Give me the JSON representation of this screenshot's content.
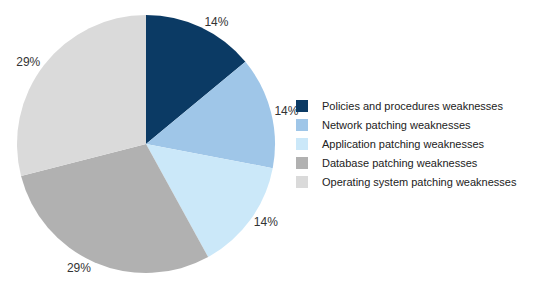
{
  "chart_data": {
    "type": "pie",
    "categories": [
      "Policies and procedures weaknesses",
      "Network patching weaknesses",
      "Application patching weaknesses",
      "Database patching weaknesses",
      "Operating system patching weaknesses"
    ],
    "values": [
      14,
      14,
      14,
      29,
      29
    ],
    "value_labels": [
      "14%",
      "14%",
      "14%",
      "29%",
      "29%"
    ],
    "colors": [
      "#0b3a64",
      "#9fc6e8",
      "#cbe8f9",
      "#b1b1b1",
      "#dadada"
    ],
    "data_labels": true,
    "legend": "right"
  }
}
